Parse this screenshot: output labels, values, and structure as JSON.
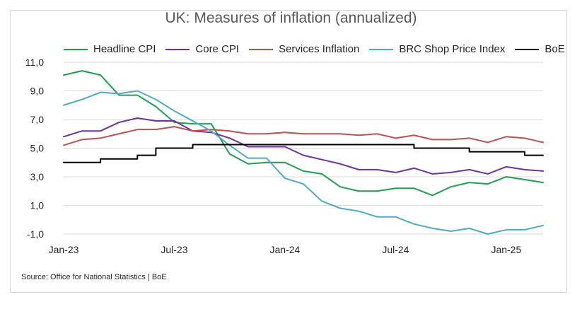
{
  "chart_data": {
    "type": "line",
    "title": "UK: Measures of inflation (annualized)",
    "ylim": [
      -1,
      11
    ],
    "y_ticks": [
      "11,0",
      "9,0",
      "7,0",
      "5,0",
      "3,0",
      "1,0",
      "-1,0"
    ],
    "y_tick_values": [
      11,
      9,
      7,
      5,
      3,
      1,
      -1
    ],
    "x_tick_labels": [
      "Jan-23",
      "Jul-23",
      "Jan-24",
      "Jul-24",
      "Jan-25"
    ],
    "x_tick_index": [
      0,
      6,
      12,
      18,
      24
    ],
    "x": [
      "Jan-23",
      "Feb-23",
      "Mar-23",
      "Apr-23",
      "May-23",
      "Jun-23",
      "Jul-23",
      "Aug-23",
      "Sep-23",
      "Oct-23",
      "Nov-23",
      "Dec-23",
      "Jan-24",
      "Feb-24",
      "Mar-24",
      "Apr-24",
      "May-24",
      "Jun-24",
      "Jul-24",
      "Aug-24",
      "Sep-24",
      "Oct-24",
      "Nov-24",
      "Dec-24",
      "Jan-25",
      "Feb-25",
      "Mar-25"
    ],
    "grid": "horizontal",
    "legend": "top",
    "series": [
      {
        "name": "Headline CPI",
        "color": "#1aa34a",
        "values": [
          10.1,
          10.4,
          10.1,
          8.7,
          8.7,
          7.9,
          6.8,
          6.7,
          6.7,
          4.6,
          3.9,
          4.0,
          4.0,
          3.4,
          3.2,
          2.3,
          2.0,
          2.0,
          2.2,
          2.2,
          1.7,
          2.3,
          2.6,
          2.5,
          3.0,
          2.8,
          2.6
        ]
      },
      {
        "name": "Core CPI",
        "color": "#7030a0",
        "values": [
          5.8,
          6.2,
          6.2,
          6.8,
          7.1,
          6.9,
          6.9,
          6.2,
          6.1,
          5.7,
          5.1,
          5.1,
          5.1,
          4.5,
          4.2,
          3.9,
          3.5,
          3.5,
          3.3,
          3.6,
          3.2,
          3.3,
          3.5,
          3.2,
          3.7,
          3.5,
          3.4
        ]
      },
      {
        "name": "Services Inflation",
        "color": "#c0504d",
        "values": [
          5.2,
          5.6,
          5.7,
          6.0,
          6.3,
          6.3,
          6.5,
          6.2,
          6.3,
          6.2,
          6.0,
          6.0,
          6.1,
          6.0,
          6.0,
          6.0,
          5.9,
          6.0,
          5.7,
          5.9,
          5.6,
          5.6,
          5.7,
          5.4,
          5.8,
          5.7,
          5.4
        ]
      },
      {
        "name": "BRC Shop Price Index",
        "color": "#4bacc6",
        "values": [
          8.0,
          8.4,
          8.9,
          8.8,
          9.0,
          8.4,
          7.6,
          6.9,
          6.2,
          5.2,
          4.3,
          4.3,
          2.9,
          2.5,
          1.3,
          0.8,
          0.6,
          0.2,
          0.2,
          -0.3,
          -0.6,
          -0.8,
          -0.6,
          -1.0,
          -0.7,
          -0.7,
          -0.4
        ]
      },
      {
        "name": "BoE",
        "color": "#000000",
        "step": true,
        "values": [
          4.0,
          4.0,
          4.25,
          4.25,
          4.5,
          5.0,
          5.0,
          5.25,
          5.25,
          5.25,
          5.25,
          5.25,
          5.25,
          5.25,
          5.25,
          5.25,
          5.25,
          5.25,
          5.25,
          5.0,
          5.0,
          5.0,
          4.75,
          4.75,
          4.75,
          4.5,
          4.5
        ]
      }
    ],
    "source": "Source: Office for National Statistics | BoE"
  }
}
